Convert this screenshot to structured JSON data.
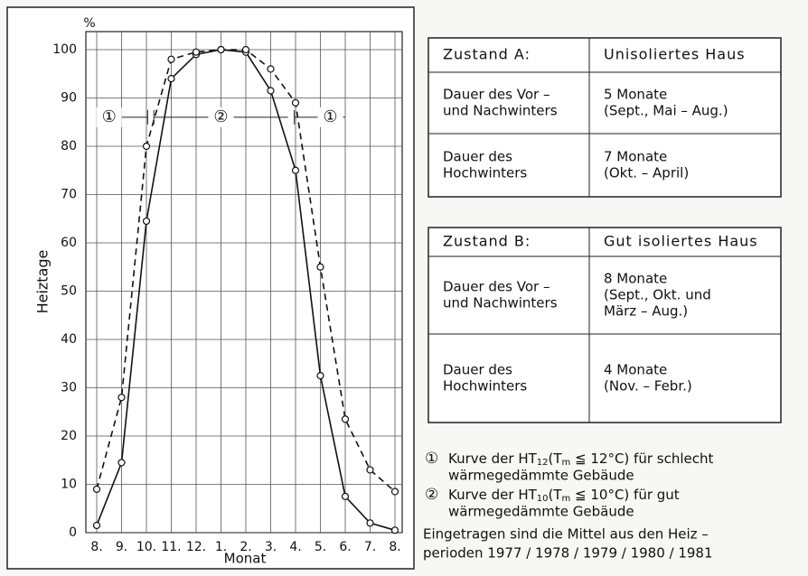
{
  "chart_data": {
    "type": "line",
    "y_unit": "%",
    "ylabel": "Heiztage",
    "xlabel": "Monat",
    "categories": [
      "8.",
      "9.",
      "10.",
      "11.",
      "12.",
      "1.",
      "2.",
      "3.",
      "4.",
      "5.",
      "6.",
      "7.",
      "8."
    ],
    "series": [
      {
        "style": "solid",
        "color": "#111",
        "values": [
          1.5,
          14.5,
          64.5,
          94,
          99,
          100,
          99.5,
          91.5,
          75,
          32.5,
          7.5,
          2,
          0.5
        ]
      },
      {
        "style": "dashed",
        "color": "#111",
        "values": [
          9,
          28,
          80,
          98,
          99.5,
          100,
          100,
          96,
          89,
          55,
          23.5,
          13,
          8.5
        ]
      }
    ],
    "ylim": [
      0,
      100
    ],
    "yticks": [
      0,
      10,
      20,
      30,
      40,
      50,
      60,
      70,
      80,
      90,
      100
    ],
    "grid": true,
    "period_labels": [
      "①",
      "②",
      "①"
    ]
  },
  "table_a": {
    "header": [
      "Zustand A:",
      "Unisoliertes Haus"
    ],
    "rows": [
      [
        [
          "Dauer des Vor –",
          "und Nachwinters"
        ],
        [
          "5 Monate",
          "(Sept., Mai – Aug.)"
        ]
      ],
      [
        [
          "Dauer des",
          "Hochwinters"
        ],
        [
          "7 Monate",
          "(Okt. – April)"
        ]
      ]
    ]
  },
  "table_b": {
    "header": [
      "Zustand B:",
      "Gut isoliertes Haus"
    ],
    "rows": [
      [
        [
          "Dauer des Vor –",
          "und Nachwinters"
        ],
        [
          "8 Monate",
          "(Sept., Okt. und",
          "März – Aug.)"
        ]
      ],
      [
        [
          "Dauer des",
          "Hochwinters"
        ],
        [
          "4 Monate",
          "(Nov. – Febr.)"
        ]
      ]
    ]
  },
  "notes": [
    {
      "marker": "①",
      "parts": [
        "Kurve der HT",
        "12",
        "(T",
        "m",
        " ≦ 12°C) für schlecht"
      ],
      "line2": "wärmegedämmte Gebäude"
    },
    {
      "marker": "②",
      "parts": [
        "Kurve der HT",
        "10",
        "(T",
        "m",
        " ≦ 10°C) für gut"
      ],
      "line2": "wärmegedämmte Gebäude"
    }
  ],
  "footer": [
    "Eingetragen sind die Mittel aus den Heiz –",
    "perioden 1977 / 1978 / 1979 / 1980 / 1981"
  ]
}
